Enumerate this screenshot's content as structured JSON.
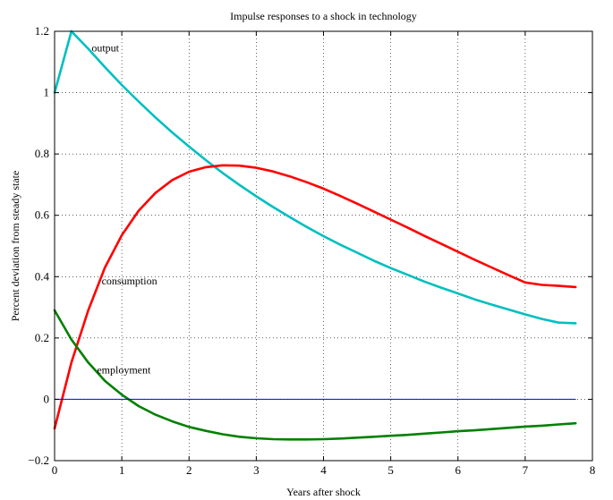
{
  "chart_data": {
    "type": "line",
    "title": "Impulse responses to a shock in technology",
    "xlabel": "Years after shock",
    "ylabel": "Percent deviation from steady state",
    "xlim": [
      0,
      8
    ],
    "ylim": [
      -0.2,
      1.2
    ],
    "xticks": [
      "0",
      "1",
      "2",
      "3",
      "4",
      "5",
      "6",
      "7",
      "8"
    ],
    "yticks": [
      "−0.2",
      "0",
      "0.2",
      "0.4",
      "0.6",
      "0.8",
      "1",
      "1.2"
    ],
    "grid": true,
    "series": [
      {
        "name": "output",
        "color": "#00bfbf",
        "x": [
          0,
          0.25,
          0.5,
          0.75,
          1,
          1.25,
          1.5,
          1.75,
          2,
          2.25,
          2.5,
          2.75,
          3,
          3.25,
          3.5,
          3.75,
          4,
          4.25,
          4.5,
          4.75,
          5,
          5.25,
          5.5,
          5.75,
          6,
          6.25,
          6.5,
          6.75,
          7,
          7.25,
          7.5,
          7.75
        ],
        "values": [
          1.0,
          1.2,
          1.143,
          1.083,
          1.025,
          0.971,
          0.919,
          0.87,
          0.824,
          0.78,
          0.738,
          0.699,
          0.662,
          0.627,
          0.594,
          0.562,
          0.532,
          0.504,
          0.478,
          0.452,
          0.428,
          0.406,
          0.384,
          0.364,
          0.345,
          0.326,
          0.309,
          0.293,
          0.277,
          0.262,
          0.25,
          0.248
        ]
      },
      {
        "name": "consumption",
        "color": "#ff0000",
        "x": [
          0,
          0.25,
          0.5,
          0.75,
          1,
          1.25,
          1.5,
          1.75,
          2,
          2.25,
          2.5,
          2.75,
          3,
          3.25,
          3.5,
          3.75,
          4,
          4.25,
          4.5,
          4.75,
          5,
          5.25,
          5.5,
          5.75,
          6,
          6.25,
          6.5,
          6.75,
          7,
          7.25,
          7.5,
          7.75
        ],
        "values": [
          -0.095,
          0.12,
          0.29,
          0.43,
          0.535,
          0.615,
          0.673,
          0.715,
          0.742,
          0.757,
          0.763,
          0.762,
          0.755,
          0.743,
          0.727,
          0.708,
          0.687,
          0.663,
          0.638,
          0.612,
          0.586,
          0.56,
          0.533,
          0.507,
          0.481,
          0.455,
          0.43,
          0.405,
          0.381,
          0.373,
          0.37,
          0.366
        ]
      },
      {
        "name": "employment",
        "color": "#008000",
        "x": [
          0,
          0.25,
          0.5,
          0.75,
          1,
          1.25,
          1.5,
          1.75,
          2,
          2.25,
          2.5,
          2.75,
          3,
          3.25,
          3.5,
          3.75,
          4,
          4.25,
          4.5,
          4.75,
          5,
          5.25,
          5.5,
          5.75,
          6,
          6.25,
          6.5,
          6.75,
          7,
          7.25,
          7.5,
          7.75
        ],
        "values": [
          0.29,
          0.195,
          0.12,
          0.06,
          0.015,
          -0.022,
          -0.05,
          -0.072,
          -0.09,
          -0.103,
          -0.114,
          -0.122,
          -0.127,
          -0.13,
          -0.131,
          -0.131,
          -0.13,
          -0.128,
          -0.125,
          -0.122,
          -0.119,
          -0.116,
          -0.112,
          -0.108,
          -0.104,
          -0.101,
          -0.097,
          -0.093,
          -0.089,
          -0.086,
          -0.082,
          -0.078
        ]
      },
      {
        "name": "",
        "color": "#0000ff",
        "x": [
          0,
          7.75
        ],
        "values": [
          0,
          0
        ]
      }
    ],
    "annotations": [
      {
        "text": "output",
        "x": 0.55,
        "y": 1.135
      },
      {
        "text": "consumption",
        "x": 0.7,
        "y": 0.375
      },
      {
        "text": "employment",
        "x": 0.63,
        "y": 0.085
      }
    ]
  }
}
